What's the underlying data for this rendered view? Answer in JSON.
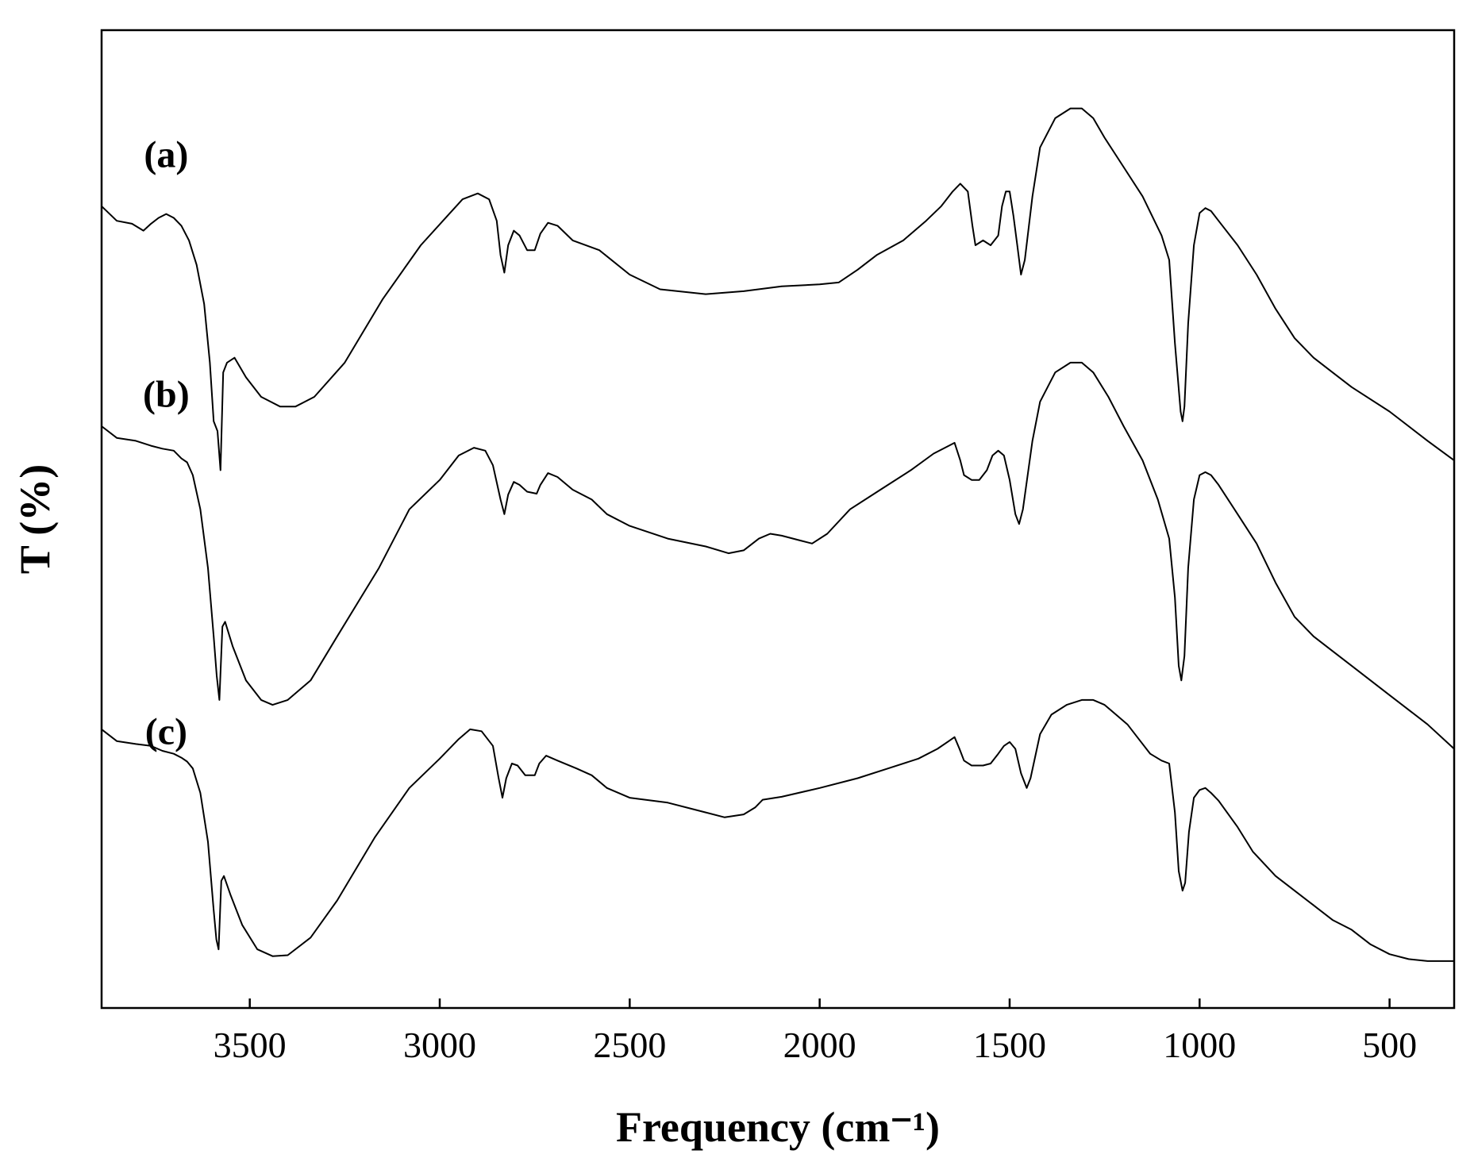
{
  "chart_data": {
    "type": "line",
    "xlabel": "Frequency (cm⁻¹)",
    "ylabel": "T (%)",
    "xlim": [
      3890,
      330
    ],
    "x_ticks": [
      3500,
      3000,
      2500,
      2000,
      1500,
      1000,
      500
    ],
    "x_tick_labels": [
      "3500",
      "3000",
      "2500",
      "2000",
      "1500",
      "1000",
      "500"
    ],
    "ylim": [
      0,
      100
    ],
    "y_ticks": [],
    "grid": false,
    "legend": "none",
    "series": [
      {
        "name": "(a)",
        "label_pos": [
          3720,
          86.0
        ],
        "points": [
          [
            3890,
            82.0
          ],
          [
            3850,
            80.5
          ],
          [
            3810,
            80.2
          ],
          [
            3780,
            79.5
          ],
          [
            3760,
            80.2
          ],
          [
            3740,
            80.8
          ],
          [
            3720,
            81.2
          ],
          [
            3700,
            80.8
          ],
          [
            3680,
            80.0
          ],
          [
            3660,
            78.5
          ],
          [
            3640,
            76.0
          ],
          [
            3620,
            72.0
          ],
          [
            3605,
            66.0
          ],
          [
            3595,
            60.0
          ],
          [
            3585,
            59.0
          ],
          [
            3577,
            55.0
          ],
          [
            3570,
            65.0
          ],
          [
            3560,
            66.0
          ],
          [
            3540,
            66.5
          ],
          [
            3510,
            64.5
          ],
          [
            3470,
            62.5
          ],
          [
            3420,
            61.5
          ],
          [
            3380,
            61.5
          ],
          [
            3330,
            62.5
          ],
          [
            3250,
            66.0
          ],
          [
            3150,
            72.5
          ],
          [
            3050,
            78.0
          ],
          [
            2980,
            81.0
          ],
          [
            2940,
            82.7
          ],
          [
            2900,
            83.3
          ],
          [
            2870,
            82.7
          ],
          [
            2850,
            80.5
          ],
          [
            2840,
            77.0
          ],
          [
            2830,
            75.2
          ],
          [
            2820,
            78.0
          ],
          [
            2805,
            79.5
          ],
          [
            2790,
            79.0
          ],
          [
            2770,
            77.5
          ],
          [
            2750,
            77.5
          ],
          [
            2735,
            79.2
          ],
          [
            2715,
            80.3
          ],
          [
            2690,
            80.0
          ],
          [
            2650,
            78.5
          ],
          [
            2580,
            77.5
          ],
          [
            2500,
            75.0
          ],
          [
            2420,
            73.5
          ],
          [
            2300,
            73.0
          ],
          [
            2200,
            73.3
          ],
          [
            2100,
            73.8
          ],
          [
            2000,
            74.0
          ],
          [
            1950,
            74.2
          ],
          [
            1900,
            75.5
          ],
          [
            1850,
            77.0
          ],
          [
            1780,
            78.5
          ],
          [
            1720,
            80.5
          ],
          [
            1680,
            82.0
          ],
          [
            1650,
            83.5
          ],
          [
            1630,
            84.3
          ],
          [
            1610,
            83.5
          ],
          [
            1598,
            80.0
          ],
          [
            1590,
            78.0
          ],
          [
            1570,
            78.5
          ],
          [
            1550,
            78.0
          ],
          [
            1530,
            79.0
          ],
          [
            1520,
            82.0
          ],
          [
            1510,
            83.5
          ],
          [
            1500,
            83.5
          ],
          [
            1490,
            81.0
          ],
          [
            1480,
            78.0
          ],
          [
            1470,
            75.0
          ],
          [
            1460,
            76.5
          ],
          [
            1440,
            83.0
          ],
          [
            1420,
            88.0
          ],
          [
            1380,
            91.0
          ],
          [
            1340,
            92.0
          ],
          [
            1310,
            92.0
          ],
          [
            1280,
            91.0
          ],
          [
            1250,
            89.0
          ],
          [
            1200,
            86.0
          ],
          [
            1150,
            83.0
          ],
          [
            1100,
            79.0
          ],
          [
            1080,
            76.5
          ],
          [
            1065,
            68.0
          ],
          [
            1050,
            61.0
          ],
          [
            1045,
            60.0
          ],
          [
            1040,
            61.5
          ],
          [
            1030,
            70.0
          ],
          [
            1015,
            78.0
          ],
          [
            1000,
            81.3
          ],
          [
            985,
            81.8
          ],
          [
            970,
            81.5
          ],
          [
            950,
            80.5
          ],
          [
            900,
            78.0
          ],
          [
            850,
            75.0
          ],
          [
            800,
            71.5
          ],
          [
            750,
            68.5
          ],
          [
            700,
            66.5
          ],
          [
            650,
            65.0
          ],
          [
            600,
            63.5
          ],
          [
            500,
            61.0
          ],
          [
            400,
            58.0
          ],
          [
            330,
            56.0
          ]
        ]
      },
      {
        "name": "(b)",
        "label_pos": [
          3720,
          61.5
        ],
        "points": [
          [
            3890,
            59.5
          ],
          [
            3850,
            58.3
          ],
          [
            3800,
            58.0
          ],
          [
            3760,
            57.5
          ],
          [
            3730,
            57.2
          ],
          [
            3700,
            57.0
          ],
          [
            3680,
            56.2
          ],
          [
            3665,
            55.8
          ],
          [
            3650,
            54.5
          ],
          [
            3630,
            51.0
          ],
          [
            3610,
            45.0
          ],
          [
            3595,
            38.0
          ],
          [
            3587,
            34.0
          ],
          [
            3580,
            31.5
          ],
          [
            3572,
            39.0
          ],
          [
            3565,
            39.5
          ],
          [
            3545,
            37.0
          ],
          [
            3510,
            33.5
          ],
          [
            3470,
            31.5
          ],
          [
            3440,
            31.0
          ],
          [
            3400,
            31.5
          ],
          [
            3340,
            33.5
          ],
          [
            3270,
            38.0
          ],
          [
            3160,
            45.0
          ],
          [
            3080,
            51.0
          ],
          [
            3000,
            54.0
          ],
          [
            2950,
            56.5
          ],
          [
            2910,
            57.3
          ],
          [
            2880,
            57.0
          ],
          [
            2860,
            55.5
          ],
          [
            2840,
            52.0
          ],
          [
            2830,
            50.5
          ],
          [
            2820,
            52.5
          ],
          [
            2805,
            53.8
          ],
          [
            2790,
            53.5
          ],
          [
            2770,
            52.8
          ],
          [
            2745,
            52.6
          ],
          [
            2735,
            53.5
          ],
          [
            2715,
            54.7
          ],
          [
            2690,
            54.3
          ],
          [
            2650,
            53.0
          ],
          [
            2600,
            52.0
          ],
          [
            2560,
            50.5
          ],
          [
            2500,
            49.3
          ],
          [
            2400,
            48.0
          ],
          [
            2300,
            47.2
          ],
          [
            2240,
            46.5
          ],
          [
            2200,
            46.8
          ],
          [
            2160,
            48.0
          ],
          [
            2130,
            48.5
          ],
          [
            2100,
            48.3
          ],
          [
            2050,
            47.8
          ],
          [
            2020,
            47.5
          ],
          [
            1980,
            48.5
          ],
          [
            1920,
            51.0
          ],
          [
            1840,
            53.0
          ],
          [
            1760,
            55.0
          ],
          [
            1700,
            56.7
          ],
          [
            1660,
            57.5
          ],
          [
            1645,
            57.8
          ],
          [
            1630,
            56.0
          ],
          [
            1620,
            54.5
          ],
          [
            1600,
            54.0
          ],
          [
            1580,
            54.0
          ],
          [
            1560,
            55.0
          ],
          [
            1545,
            56.5
          ],
          [
            1530,
            57.0
          ],
          [
            1515,
            56.5
          ],
          [
            1500,
            54.0
          ],
          [
            1485,
            50.5
          ],
          [
            1475,
            49.5
          ],
          [
            1465,
            51.0
          ],
          [
            1440,
            58.0
          ],
          [
            1420,
            62.0
          ],
          [
            1380,
            65.0
          ],
          [
            1340,
            66.0
          ],
          [
            1310,
            66.0
          ],
          [
            1280,
            65.0
          ],
          [
            1240,
            62.5
          ],
          [
            1200,
            59.5
          ],
          [
            1150,
            56.0
          ],
          [
            1110,
            52.0
          ],
          [
            1080,
            48.0
          ],
          [
            1065,
            42.0
          ],
          [
            1055,
            35.0
          ],
          [
            1048,
            33.5
          ],
          [
            1040,
            36.0
          ],
          [
            1030,
            45.0
          ],
          [
            1015,
            52.0
          ],
          [
            1000,
            54.5
          ],
          [
            985,
            54.8
          ],
          [
            970,
            54.5
          ],
          [
            950,
            53.5
          ],
          [
            900,
            50.5
          ],
          [
            850,
            47.5
          ],
          [
            800,
            43.5
          ],
          [
            750,
            40.0
          ],
          [
            700,
            38.0
          ],
          [
            650,
            36.5
          ],
          [
            600,
            35.0
          ],
          [
            500,
            32.0
          ],
          [
            400,
            29.0
          ],
          [
            330,
            26.5
          ]
        ]
      },
      {
        "name": "(c)",
        "label_pos": [
          3720,
          27.0
        ],
        "points": [
          [
            3890,
            28.5
          ],
          [
            3850,
            27.3
          ],
          [
            3800,
            27.0
          ],
          [
            3760,
            26.8
          ],
          [
            3730,
            26.3
          ],
          [
            3700,
            26.0
          ],
          [
            3680,
            25.6
          ],
          [
            3665,
            25.2
          ],
          [
            3650,
            24.5
          ],
          [
            3630,
            22.0
          ],
          [
            3610,
            17.0
          ],
          [
            3595,
            10.0
          ],
          [
            3588,
            7.0
          ],
          [
            3582,
            6.0
          ],
          [
            3575,
            13.0
          ],
          [
            3568,
            13.5
          ],
          [
            3550,
            11.5
          ],
          [
            3520,
            8.5
          ],
          [
            3480,
            6.0
          ],
          [
            3440,
            5.3
          ],
          [
            3400,
            5.4
          ],
          [
            3340,
            7.2
          ],
          [
            3270,
            11.0
          ],
          [
            3170,
            17.5
          ],
          [
            3080,
            22.5
          ],
          [
            3000,
            25.5
          ],
          [
            2950,
            27.5
          ],
          [
            2920,
            28.5
          ],
          [
            2890,
            28.3
          ],
          [
            2860,
            26.8
          ],
          [
            2845,
            23.5
          ],
          [
            2835,
            21.5
          ],
          [
            2825,
            23.5
          ],
          [
            2810,
            25.0
          ],
          [
            2795,
            24.8
          ],
          [
            2775,
            23.8
          ],
          [
            2750,
            23.8
          ],
          [
            2738,
            25.0
          ],
          [
            2720,
            25.8
          ],
          [
            2690,
            25.3
          ],
          [
            2640,
            24.5
          ],
          [
            2600,
            23.8
          ],
          [
            2560,
            22.5
          ],
          [
            2500,
            21.5
          ],
          [
            2400,
            21.0
          ],
          [
            2300,
            20.0
          ],
          [
            2250,
            19.5
          ],
          [
            2200,
            19.8
          ],
          [
            2170,
            20.5
          ],
          [
            2150,
            21.3
          ],
          [
            2100,
            21.6
          ],
          [
            2000,
            22.5
          ],
          [
            1900,
            23.5
          ],
          [
            1820,
            24.5
          ],
          [
            1740,
            25.5
          ],
          [
            1690,
            26.5
          ],
          [
            1660,
            27.3
          ],
          [
            1645,
            27.7
          ],
          [
            1632,
            26.5
          ],
          [
            1620,
            25.3
          ],
          [
            1600,
            24.8
          ],
          [
            1570,
            24.8
          ],
          [
            1550,
            25.0
          ],
          [
            1530,
            26.0
          ],
          [
            1515,
            26.8
          ],
          [
            1500,
            27.2
          ],
          [
            1485,
            26.5
          ],
          [
            1470,
            24.0
          ],
          [
            1455,
            22.5
          ],
          [
            1445,
            23.5
          ],
          [
            1420,
            28.0
          ],
          [
            1390,
            30.0
          ],
          [
            1350,
            31.0
          ],
          [
            1310,
            31.5
          ],
          [
            1280,
            31.5
          ],
          [
            1250,
            31.0
          ],
          [
            1220,
            30.0
          ],
          [
            1190,
            29.0
          ],
          [
            1160,
            27.5
          ],
          [
            1130,
            26.0
          ],
          [
            1100,
            25.3
          ],
          [
            1080,
            25.0
          ],
          [
            1065,
            20.0
          ],
          [
            1055,
            14.0
          ],
          [
            1045,
            12.0
          ],
          [
            1038,
            12.8
          ],
          [
            1028,
            18.0
          ],
          [
            1015,
            21.5
          ],
          [
            1000,
            22.3
          ],
          [
            985,
            22.5
          ],
          [
            970,
            22.0
          ],
          [
            950,
            21.2
          ],
          [
            900,
            18.5
          ],
          [
            860,
            16.0
          ],
          [
            800,
            13.5
          ],
          [
            750,
            12.0
          ],
          [
            700,
            10.5
          ],
          [
            650,
            9.0
          ],
          [
            600,
            8.0
          ],
          [
            550,
            6.5
          ],
          [
            500,
            5.5
          ],
          [
            450,
            5.0
          ],
          [
            400,
            4.8
          ],
          [
            330,
            4.8
          ]
        ]
      }
    ]
  }
}
